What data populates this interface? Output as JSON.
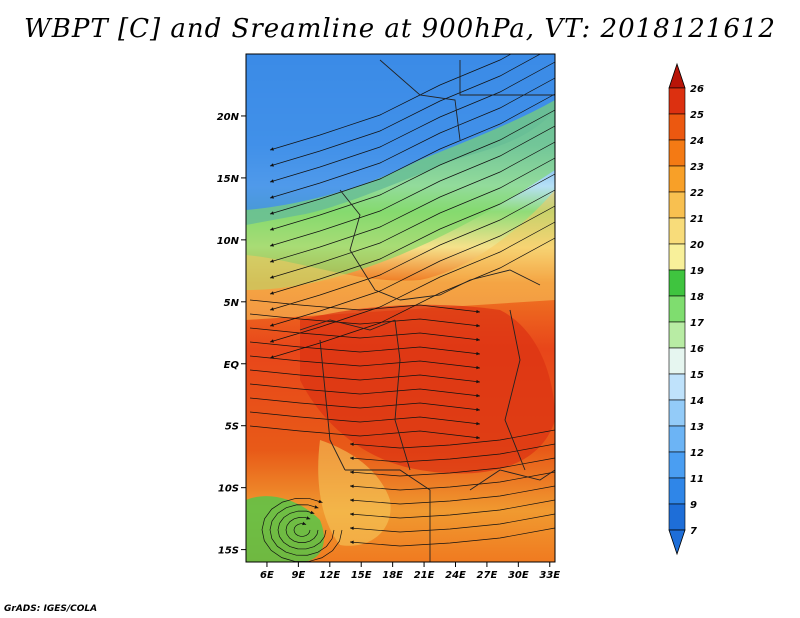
{
  "title": "WBPT [C] and Sreamline at 900hPa, VT: 2018121612",
  "credit": "GrADS: IGES/COLA",
  "map": {
    "lat_labels": [
      "20N",
      "15N",
      "10N",
      "5N",
      "EQ",
      "5S",
      "10S",
      "15S"
    ],
    "lat_values": [
      20,
      15,
      10,
      5,
      0,
      -5,
      -10,
      -15
    ],
    "lon_labels": [
      "6E",
      "9E",
      "12E",
      "15E",
      "18E",
      "21E",
      "24E",
      "27E",
      "30E",
      "33E"
    ],
    "lon_values": [
      6,
      9,
      12,
      15,
      18,
      21,
      24,
      27,
      30,
      33
    ],
    "lat_range": [
      -16,
      25
    ],
    "lon_range": [
      4,
      33.5
    ]
  },
  "colorbar": {
    "levels": [
      "7",
      "9",
      "11",
      "12",
      "13",
      "14",
      "15",
      "16",
      "17",
      "18",
      "19",
      "20",
      "21",
      "22",
      "23",
      "24",
      "25",
      "26"
    ],
    "colors": [
      "#1e6ed8",
      "#2f86e8",
      "#4a9ef2",
      "#6cb4f5",
      "#93cbf8",
      "#bfe2fb",
      "#e6f6f0",
      "#b8eca4",
      "#7fdd6f",
      "#3fc43f",
      "#f8f09a",
      "#f8dc7a",
      "#f8c050",
      "#f8a028",
      "#f47a14",
      "#ec5810",
      "#dc3010",
      "#b81408"
    ]
  }
}
